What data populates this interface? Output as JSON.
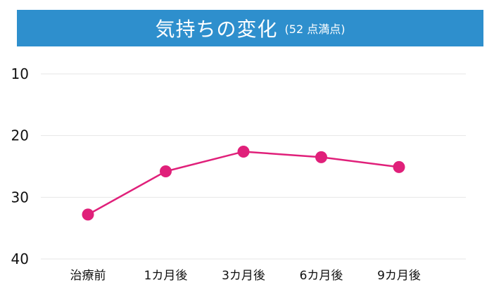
{
  "chart_data": {
    "type": "line",
    "title": "気持ちの変化",
    "subtitle": "(52 点満点)",
    "categories": [
      "治療前",
      "1カ月後",
      "3カ月後",
      "6カ月後",
      "9カ月後"
    ],
    "series": [
      {
        "values": [
          32.8,
          25.8,
          22.6,
          23.5,
          25.1
        ]
      }
    ],
    "yticks": [
      10,
      20,
      30,
      40
    ],
    "ylim": [
      10,
      40
    ],
    "y_inverted": true,
    "grid": true,
    "colors": {
      "line": "#e0207a",
      "title_bg": "#2e8fcd",
      "grid": "#e6e6e6"
    }
  }
}
